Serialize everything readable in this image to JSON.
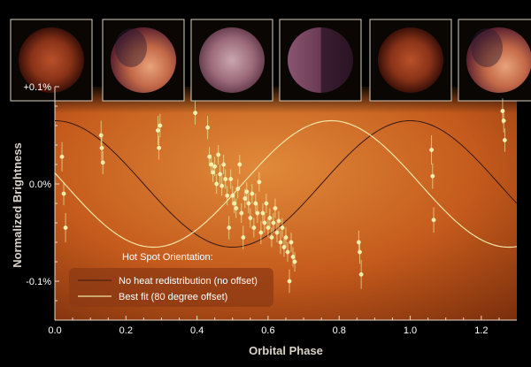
{
  "chart_data": {
    "type": "scatter",
    "title": "",
    "xlabel": "Orbital Phase",
    "ylabel": "Normalized Brightness",
    "xlim": [
      0.0,
      1.3
    ],
    "ylim": [
      -0.14,
      0.1
    ],
    "x_ticks": [
      0.0,
      0.2,
      0.4,
      0.6,
      0.8,
      1.0,
      1.2
    ],
    "x_tick_labels": [
      "0.0",
      "0.2",
      "0.4",
      "0.6",
      "0.8",
      "1.0",
      "1.2"
    ],
    "y_ticks": [
      0.1,
      0.0,
      -0.1
    ],
    "y_tick_labels": [
      "+0.1%",
      "0.0%",
      "-0.1%"
    ],
    "grid": false,
    "legend_position": "bottom-left",
    "legend_title": "Hot Spot Orientation:",
    "series": [
      {
        "name": "No heat redistribution (no offset)",
        "kind": "model-curve",
        "color": "#3a1a10",
        "phase_offset_deg": 0,
        "amplitude_percent": 0.065
      },
      {
        "name": "Best fit (80 degree offset)",
        "kind": "model-curve",
        "color": "#f3e6a8",
        "phase_offset_deg": 80,
        "amplitude_percent": 0.065
      }
    ],
    "observations": {
      "marker_color": "#f4efa8",
      "points": [
        {
          "x": 0.02,
          "y": 0.028,
          "err": 0.015
        },
        {
          "x": 0.025,
          "y": -0.01,
          "err": 0.012
        },
        {
          "x": 0.03,
          "y": -0.045,
          "err": 0.015
        },
        {
          "x": 0.13,
          "y": 0.05,
          "err": 0.015
        },
        {
          "x": 0.132,
          "y": 0.037,
          "err": 0.013
        },
        {
          "x": 0.135,
          "y": 0.022,
          "err": 0.012
        },
        {
          "x": 0.29,
          "y": 0.055,
          "err": 0.015
        },
        {
          "x": 0.293,
          "y": 0.037,
          "err": 0.012
        },
        {
          "x": 0.296,
          "y": 0.06,
          "err": 0.012
        },
        {
          "x": 0.395,
          "y": 0.073,
          "err": 0.012
        },
        {
          "x": 0.43,
          "y": 0.058,
          "err": 0.012
        },
        {
          "x": 0.435,
          "y": 0.028,
          "err": 0.01
        },
        {
          "x": 0.44,
          "y": 0.02,
          "err": 0.01
        },
        {
          "x": 0.445,
          "y": 0.012,
          "err": 0.01
        },
        {
          "x": 0.45,
          "y": 0.018,
          "err": 0.01
        },
        {
          "x": 0.455,
          "y": 0.0,
          "err": 0.01
        },
        {
          "x": 0.46,
          "y": 0.03,
          "err": 0.01
        },
        {
          "x": 0.465,
          "y": 0.01,
          "err": 0.01
        },
        {
          "x": 0.47,
          "y": -0.002,
          "err": 0.01
        },
        {
          "x": 0.475,
          "y": 0.02,
          "err": 0.01
        },
        {
          "x": 0.48,
          "y": 0.005,
          "err": 0.01
        },
        {
          "x": 0.485,
          "y": -0.012,
          "err": 0.01
        },
        {
          "x": 0.49,
          "y": -0.045,
          "err": 0.012
        },
        {
          "x": 0.495,
          "y": 0.005,
          "err": 0.01
        },
        {
          "x": 0.5,
          "y": -0.012,
          "err": 0.01
        },
        {
          "x": 0.505,
          "y": -0.02,
          "err": 0.01
        },
        {
          "x": 0.51,
          "y": -0.025,
          "err": 0.01
        },
        {
          "x": 0.515,
          "y": -0.005,
          "err": 0.01
        },
        {
          "x": 0.52,
          "y": 0.02,
          "err": 0.01
        },
        {
          "x": 0.525,
          "y": -0.03,
          "err": 0.01
        },
        {
          "x": 0.53,
          "y": -0.055,
          "err": 0.012
        },
        {
          "x": 0.535,
          "y": -0.015,
          "err": 0.01
        },
        {
          "x": 0.54,
          "y": -0.008,
          "err": 0.01
        },
        {
          "x": 0.545,
          "y": -0.02,
          "err": 0.01
        },
        {
          "x": 0.55,
          "y": -0.035,
          "err": 0.01
        },
        {
          "x": 0.555,
          "y": -0.01,
          "err": 0.01
        },
        {
          "x": 0.56,
          "y": -0.045,
          "err": 0.01
        },
        {
          "x": 0.565,
          "y": -0.02,
          "err": 0.01
        },
        {
          "x": 0.57,
          "y": -0.03,
          "err": 0.01
        },
        {
          "x": 0.575,
          "y": 0.002,
          "err": 0.01
        },
        {
          "x": 0.58,
          "y": -0.05,
          "err": 0.012
        },
        {
          "x": 0.585,
          "y": -0.03,
          "err": 0.01
        },
        {
          "x": 0.59,
          "y": -0.04,
          "err": 0.01
        },
        {
          "x": 0.595,
          "y": -0.02,
          "err": 0.01
        },
        {
          "x": 0.6,
          "y": -0.045,
          "err": 0.01
        },
        {
          "x": 0.605,
          "y": -0.035,
          "err": 0.01
        },
        {
          "x": 0.61,
          "y": -0.055,
          "err": 0.01
        },
        {
          "x": 0.615,
          "y": -0.04,
          "err": 0.01
        },
        {
          "x": 0.62,
          "y": -0.025,
          "err": 0.01
        },
        {
          "x": 0.625,
          "y": -0.05,
          "err": 0.01
        },
        {
          "x": 0.63,
          "y": -0.038,
          "err": 0.01
        },
        {
          "x": 0.635,
          "y": -0.06,
          "err": 0.012
        },
        {
          "x": 0.64,
          "y": -0.045,
          "err": 0.01
        },
        {
          "x": 0.645,
          "y": -0.065,
          "err": 0.01
        },
        {
          "x": 0.65,
          "y": -0.055,
          "err": 0.01
        },
        {
          "x": 0.655,
          "y": -0.07,
          "err": 0.01
        },
        {
          "x": 0.66,
          "y": -0.1,
          "err": 0.012
        },
        {
          "x": 0.665,
          "y": -0.06,
          "err": 0.01
        },
        {
          "x": 0.67,
          "y": -0.075,
          "err": 0.01
        },
        {
          "x": 0.675,
          "y": -0.08,
          "err": 0.01
        },
        {
          "x": 0.855,
          "y": -0.06,
          "err": 0.012
        },
        {
          "x": 0.858,
          "y": -0.07,
          "err": 0.012
        },
        {
          "x": 0.862,
          "y": -0.093,
          "err": 0.015
        },
        {
          "x": 1.06,
          "y": 0.035,
          "err": 0.015
        },
        {
          "x": 1.063,
          "y": 0.008,
          "err": 0.013
        },
        {
          "x": 1.066,
          "y": -0.037,
          "err": 0.013
        },
        {
          "x": 1.26,
          "y": 0.075,
          "err": 0.013
        },
        {
          "x": 1.263,
          "y": 0.065,
          "err": 0.012
        },
        {
          "x": 1.266,
          "y": 0.045,
          "err": 0.012
        }
      ]
    },
    "thumbnails": [
      {
        "name": "planet-view-1",
        "style": "nightside"
      },
      {
        "name": "planet-view-2",
        "style": "crescent-lit"
      },
      {
        "name": "planet-view-3",
        "style": "dayside"
      },
      {
        "name": "planet-view-4",
        "style": "half-lit"
      },
      {
        "name": "planet-view-5",
        "style": "nightside"
      },
      {
        "name": "planet-view-6",
        "style": "crescent-lit"
      }
    ],
    "colors": {
      "panel_bg_light": "#d8742c",
      "panel_bg_dark": "#7a2e0c",
      "legend_box": "#8e3a14",
      "figure_bg": "#000000"
    }
  }
}
